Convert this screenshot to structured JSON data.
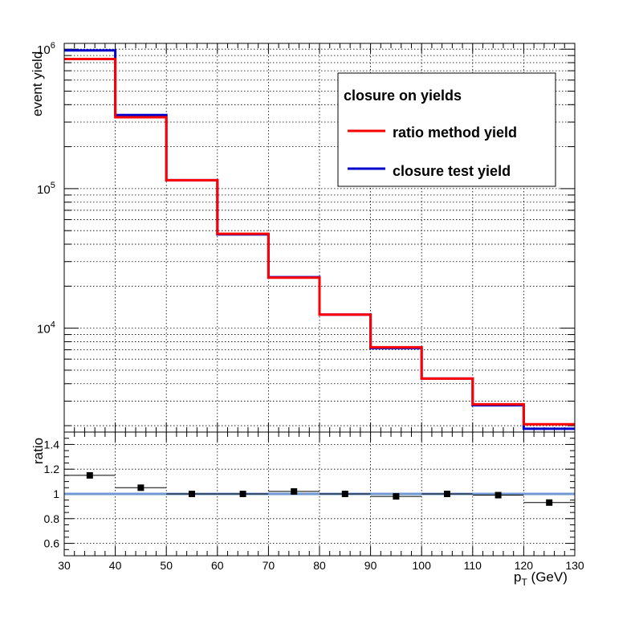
{
  "chart_data": [
    {
      "type": "line",
      "subtype": "step-histogram",
      "yscale": "log",
      "xlim": [
        30,
        130
      ],
      "ylim": [
        1800,
        1100000
      ],
      "ylabel": "event yield",
      "grid": true,
      "bin_edges": [
        30,
        40,
        50,
        60,
        70,
        80,
        90,
        100,
        110,
        120,
        130
      ],
      "series": [
        {
          "name": "ratio method yield",
          "color": "#ff0000",
          "values": [
            850000,
            325000,
            115000,
            47500,
            23000,
            12500,
            7300,
            4350,
            2850,
            2050
          ]
        },
        {
          "name": "closure test yield",
          "color": "#0000cc",
          "values": [
            980000,
            337000,
            115000,
            47000,
            23200,
            12500,
            7200,
            4350,
            2800,
            1900
          ]
        }
      ],
      "legend": {
        "title": "closure on yields",
        "position": "top-right"
      },
      "y_tick_labels": [
        {
          "value": 10000,
          "base": "10",
          "exp": "4"
        },
        {
          "value": 100000,
          "base": "10",
          "exp": "5"
        },
        {
          "value": 1000000,
          "base": "10",
          "exp": "6"
        }
      ]
    },
    {
      "type": "scatter",
      "xlim": [
        30,
        130
      ],
      "ylim": [
        0.5,
        1.5
      ],
      "ylabel": "ratio",
      "xlabel_main": "p",
      "xlabel_sub": "T",
      "xlabel_unit": " (GeV)",
      "grid": true,
      "x": [
        35,
        45,
        55,
        65,
        75,
        85,
        95,
        105,
        115,
        125
      ],
      "xerr": 5,
      "y": [
        1.15,
        1.05,
        1.0,
        1.0,
        1.02,
        1.0,
        0.98,
        1.0,
        0.99,
        0.93
      ],
      "reference_line": {
        "value": 1.0,
        "color": "#6e98d0"
      },
      "x_ticks": [
        "30",
        "40",
        "50",
        "60",
        "70",
        "80",
        "90",
        "100",
        "110",
        "120",
        "130"
      ],
      "y_ticks": [
        "0.6",
        "0.8",
        "1",
        "1.2",
        "1.4"
      ]
    }
  ]
}
